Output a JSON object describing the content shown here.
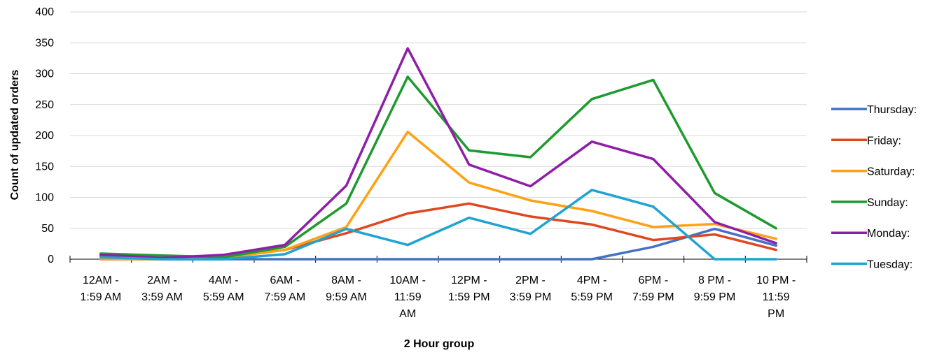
{
  "chart_data": {
    "type": "line",
    "title": "",
    "xlabel": "2 Hour group",
    "ylabel": "Count of updated orders",
    "ylim": [
      0,
      400
    ],
    "yticks": [
      0,
      50,
      100,
      150,
      200,
      250,
      300,
      350,
      400
    ],
    "grid": "horizontal",
    "legend_position": "right",
    "categories": [
      "12AM - 1:59 AM",
      "2AM - 3:59 AM",
      "4AM - 5:59 AM",
      "6AM - 7:59 AM",
      "8AM - 9:59 AM",
      "10AM - 11:59 AM",
      "12PM - 1:59 PM",
      "2PM - 3:59 PM",
      "4PM - 5:59 PM",
      "6PM - 7:59 PM",
      "8 PM - 9:59 PM",
      "10 PM - 11:59 PM"
    ],
    "category_lines": [
      [
        "12AM -",
        "1:59 AM"
      ],
      [
        "2AM -",
        "3:59 AM"
      ],
      [
        "4AM -",
        "5:59 AM"
      ],
      [
        "6AM -",
        "7:59 AM"
      ],
      [
        "8AM -",
        "9:59 AM"
      ],
      [
        "10AM -",
        "11:59",
        "AM"
      ],
      [
        "12PM -",
        "1:59 PM"
      ],
      [
        "2PM -",
        "3:59 PM"
      ],
      [
        "4PM -",
        "5:59 PM"
      ],
      [
        "6PM -",
        "7:59 PM"
      ],
      [
        "8 PM -",
        "9:59 PM"
      ],
      [
        "10 PM -",
        "11:59",
        "PM"
      ]
    ],
    "series": [
      {
        "name": "Thursday:",
        "color": "#4472C4",
        "values": [
          0,
          0,
          0,
          0,
          0,
          0,
          0,
          0,
          0,
          20,
          49,
          22
        ]
      },
      {
        "name": "Friday:",
        "color": "#E0471F",
        "values": [
          5,
          2,
          3,
          15,
          42,
          74,
          90,
          69,
          56,
          31,
          40,
          15
        ]
      },
      {
        "name": "Saturday:",
        "color": "#FFA114",
        "values": [
          0,
          0,
          2,
          15,
          52,
          206,
          124,
          95,
          78,
          52,
          57,
          33
        ]
      },
      {
        "name": "Sunday:",
        "color": "#1E9A2E",
        "values": [
          9,
          6,
          3,
          20,
          90,
          295,
          176,
          165,
          259,
          290,
          107,
          50
        ]
      },
      {
        "name": "Monday:",
        "color": "#8E1EA8",
        "values": [
          7,
          2,
          7,
          23,
          119,
          341,
          153,
          118,
          190,
          162,
          60,
          26
        ]
      },
      {
        "name": "Tuesday:",
        "color": "#1FA3CF",
        "values": [
          3,
          0,
          0,
          8,
          49,
          23,
          67,
          41,
          112,
          85,
          0,
          0
        ]
      }
    ]
  }
}
